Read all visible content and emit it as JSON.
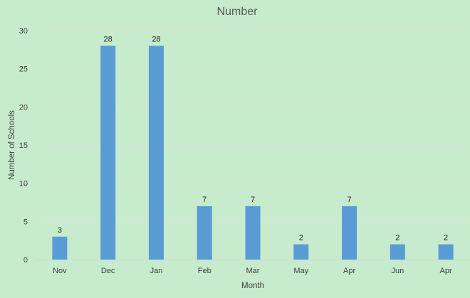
{
  "chart_data": {
    "type": "bar",
    "title": "Number",
    "xlabel": "Month",
    "ylabel": "Number of Schools",
    "categories": [
      "Nov",
      "Dec",
      "Jan",
      "Feb",
      "Mar",
      "May",
      "Apr",
      "Jun",
      "Apr"
    ],
    "values": [
      3,
      28,
      28,
      7,
      7,
      2,
      7,
      2,
      2
    ],
    "ylim": [
      0,
      30
    ],
    "yticks": [
      0,
      5,
      10,
      15,
      20,
      25,
      30
    ],
    "grid": true,
    "legend": "none",
    "data_labels": true,
    "colors": {
      "background": "#c6ebcd",
      "bar": "#5b9bd5",
      "gridline": "#d9e3dc"
    }
  }
}
